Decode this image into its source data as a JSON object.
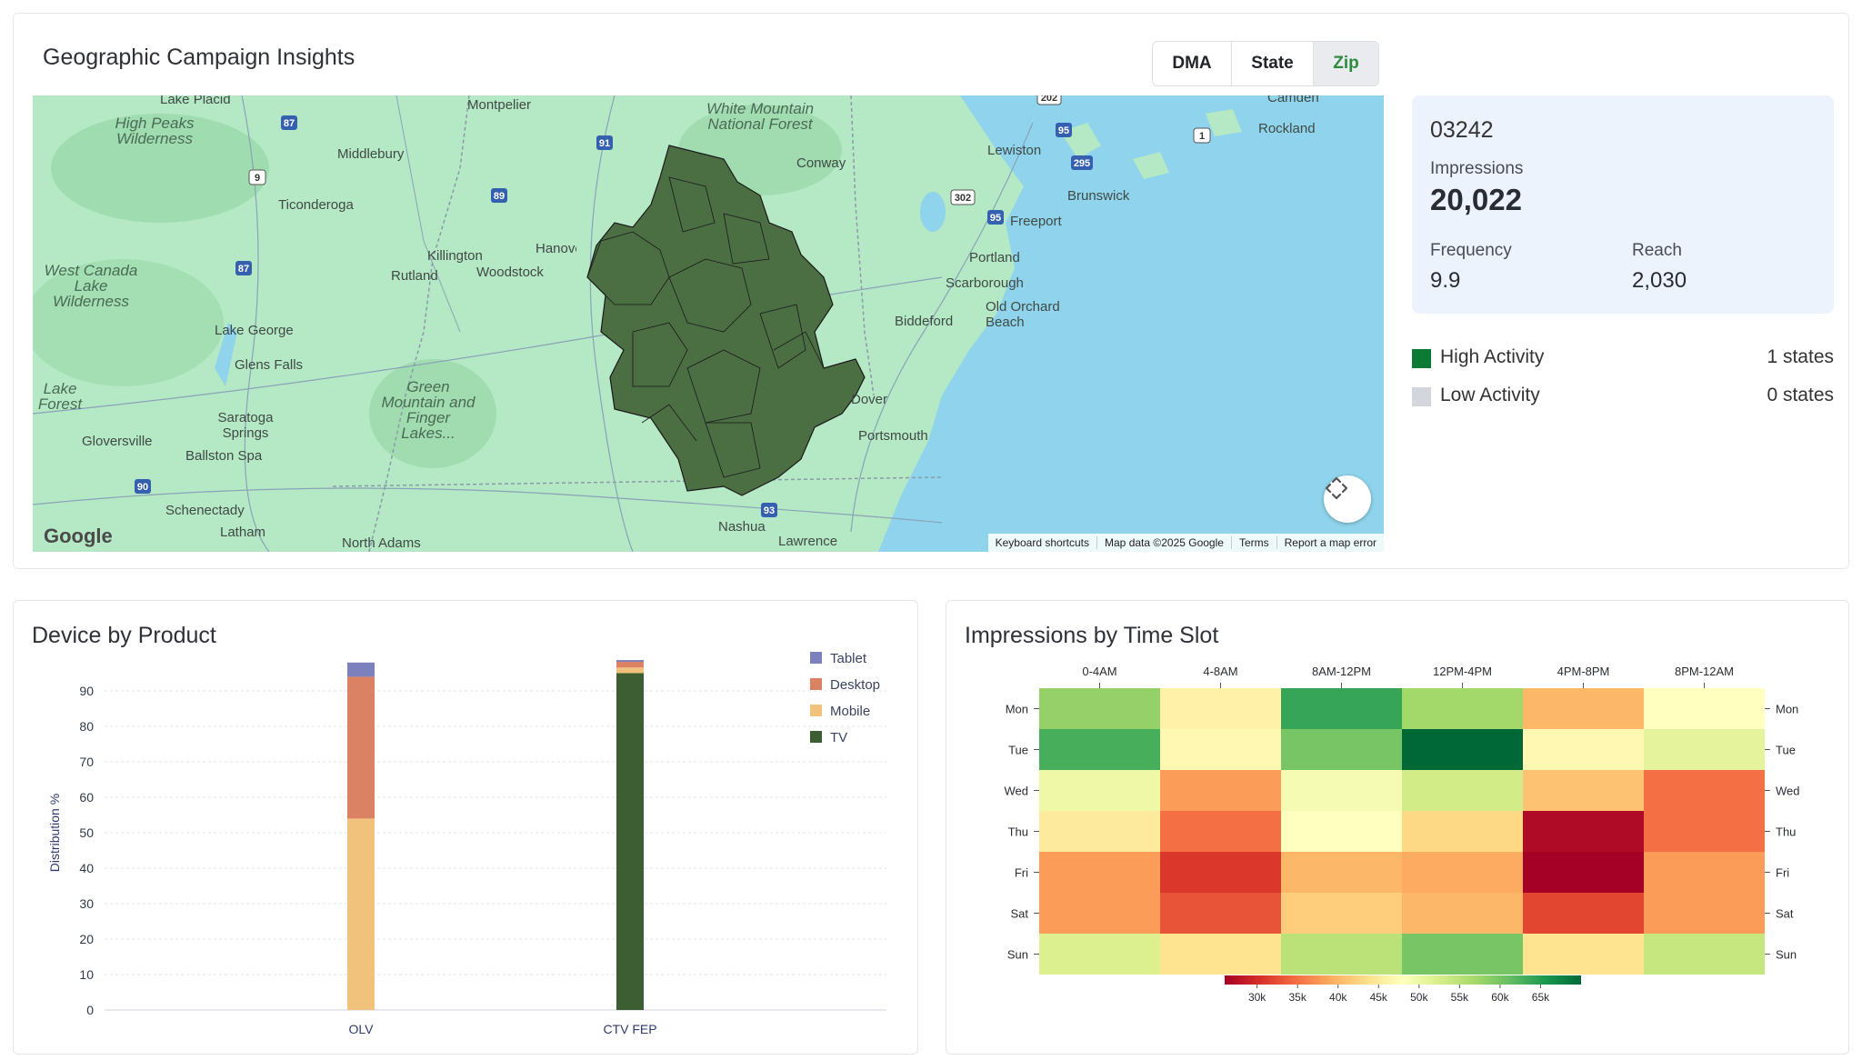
{
  "geo": {
    "title": "Geographic Campaign Insights",
    "tabs": [
      {
        "label": "DMA",
        "active": false
      },
      {
        "label": "State",
        "active": false
      },
      {
        "label": "Zip",
        "active": true
      }
    ],
    "map": {
      "places": [
        "Lake Placid",
        "Montpelier",
        "White Mountain National Forest",
        "Camden",
        "High Peaks Wilderness",
        "Middlebury",
        "Conway",
        "Lewiston",
        "Rockland",
        "Ticonderoga",
        "Brunswick",
        "Freeport",
        "West Canada Lake Wilderness",
        "Killington",
        "Woodstock",
        "Rutland",
        "Hanover",
        "Portland",
        "Scarborough",
        "Lake George",
        "Biddeford",
        "Old Orchard Beach",
        "Glens Falls",
        "Lake Forest",
        "Green Mountain and Finger Lakes...",
        "Saratoga Springs",
        "Dover",
        "Gloversville",
        "Ballston Spa",
        "Portsmouth",
        "Schenectady",
        "Nashua",
        "Latham",
        "North Adams",
        "Lawrence"
      ],
      "shields": [
        "87",
        "91",
        "9",
        "89",
        "87",
        "95",
        "302",
        "95",
        "295",
        "202",
        "1",
        "90",
        "93"
      ],
      "footer": [
        "Keyboard shortcuts",
        "Map data ©2025 Google",
        "Terms",
        "Report a map error"
      ],
      "logo": "Google"
    },
    "info": {
      "zip": "03242",
      "impressions_label": "Impressions",
      "impressions": "20,022",
      "frequency_label": "Frequency",
      "frequency": "9.9",
      "reach_label": "Reach",
      "reach": "2,030"
    },
    "legend": [
      {
        "label": "High Activity",
        "count": "1 states",
        "color": "#0c7a35"
      },
      {
        "label": "Low Activity",
        "count": "0 states",
        "color": "#d3d6dc"
      }
    ]
  },
  "device": {
    "title": "Device by Product"
  },
  "heatmap": {
    "title": "Impressions by Time Slot"
  },
  "chart_data": [
    {
      "type": "bar",
      "stacked": true,
      "title": "Device by Product",
      "ylabel": "Distribution %",
      "categories": [
        "OLV",
        "CTV FEP"
      ],
      "ylim": [
        0,
        100
      ],
      "yticks": [
        0,
        10,
        20,
        30,
        40,
        50,
        60,
        70,
        80,
        90
      ],
      "legend_position": "top-right",
      "series": [
        {
          "name": "TV",
          "color": "#3d5e32",
          "values": [
            0,
            95
          ]
        },
        {
          "name": "Mobile",
          "color": "#f0c27b",
          "values": [
            54,
            1.6
          ]
        },
        {
          "name": "Desktop",
          "color": "#db8164",
          "values": [
            40,
            1.6
          ]
        },
        {
          "name": "Tablet",
          "color": "#7c80bd",
          "values": [
            4,
            0.5
          ]
        }
      ]
    },
    {
      "type": "heatmap",
      "title": "Impressions by Time Slot",
      "x": [
        "0-4AM",
        "4-8AM",
        "8AM-12PM",
        "12PM-4PM",
        "4PM-8PM",
        "8PM-12AM"
      ],
      "y": [
        "Mon",
        "Tue",
        "Wed",
        "Thu",
        "Fri",
        "Sat",
        "Sun"
      ],
      "values": [
        [
          58,
          46,
          64,
          57,
          40,
          48
        ],
        [
          63,
          47,
          60,
          72,
          47,
          51
        ],
        [
          50,
          38,
          49,
          53,
          41,
          35
        ],
        [
          45,
          35,
          48,
          43,
          27,
          35
        ],
        [
          38,
          31,
          40,
          39,
          26,
          38
        ],
        [
          38,
          33,
          42,
          40,
          32,
          38
        ],
        [
          52,
          44,
          55,
          60,
          44,
          54
        ]
      ],
      "colorbar": {
        "ticks": [
          "30k",
          "35k",
          "40k",
          "45k",
          "50k",
          "55k",
          "60k",
          "65k"
        ],
        "tick_values": [
          30,
          35,
          40,
          45,
          50,
          55,
          60,
          65
        ],
        "range": [
          26,
          70
        ],
        "colors": [
          "#a50026",
          "#d73027",
          "#f46d43",
          "#fdae61",
          "#fee08b",
          "#ffffbf",
          "#d9ef8b",
          "#a6d96a",
          "#66bd63",
          "#1a9850",
          "#006837"
        ]
      }
    }
  ]
}
